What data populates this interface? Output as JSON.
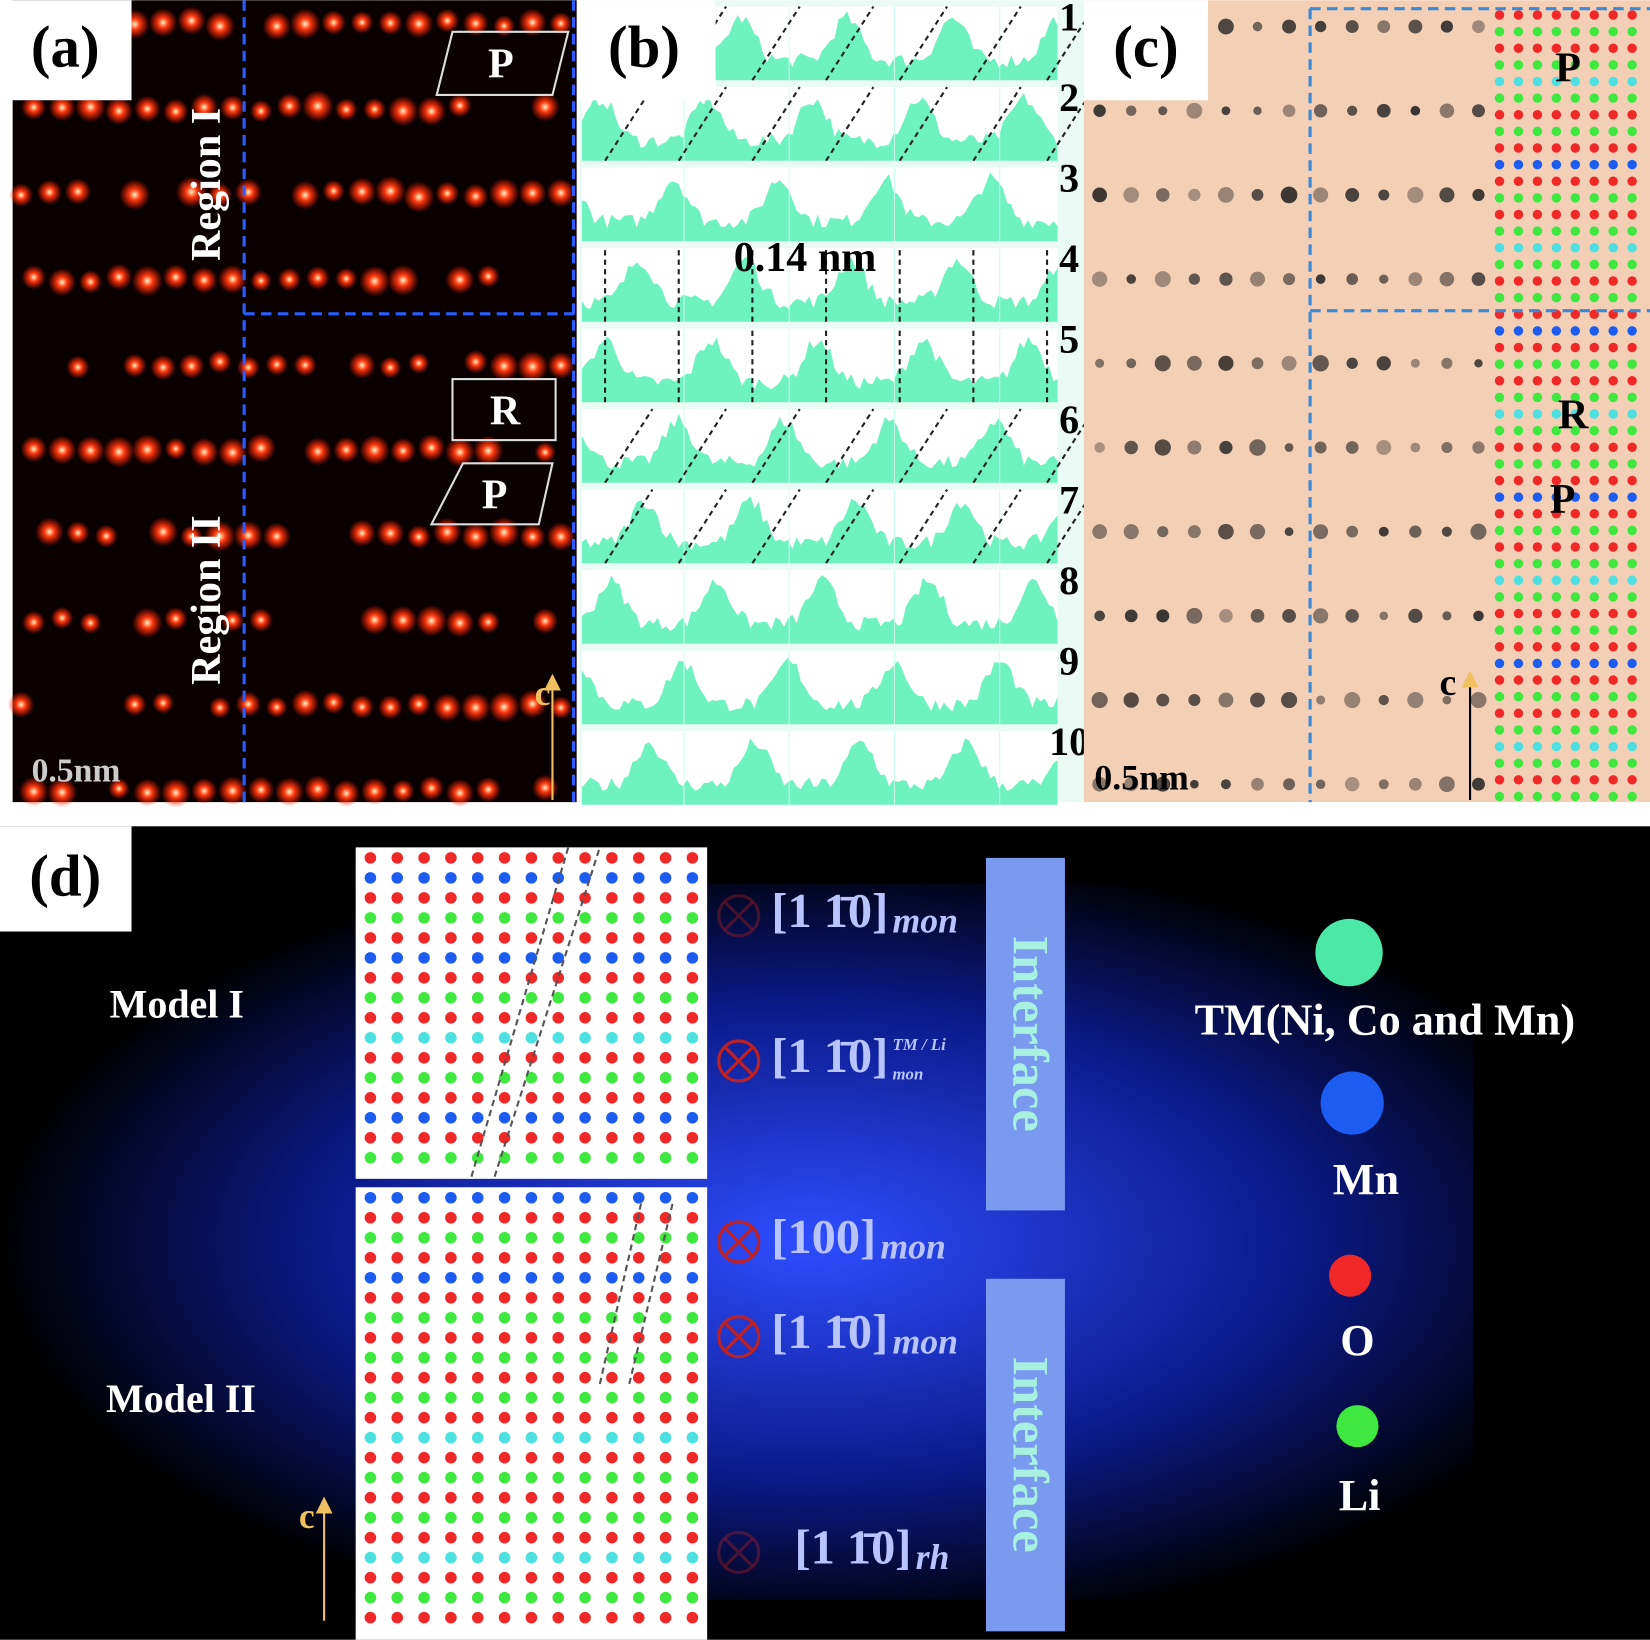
{
  "panels": {
    "a": {
      "label": "(a)",
      "regions": [
        "Region I",
        "Region II"
      ],
      "cells": [
        "P",
        "R",
        "P"
      ],
      "scale_bar": "0.5nm",
      "axis": "c"
    },
    "b": {
      "label": "(b)",
      "spacing": "0.14 nm",
      "rows": [
        1,
        2,
        3,
        4,
        5,
        6,
        7,
        8,
        9,
        10
      ]
    },
    "c": {
      "label": "(c)",
      "cells": [
        "P",
        "R",
        "P"
      ],
      "scale_bar": "0.5nm",
      "axis": "c"
    },
    "d": {
      "label": "(d)",
      "models": [
        "Model I",
        "Model II"
      ],
      "directions": [
        {
          "text": "[1 1̄0]",
          "sub": "mon"
        },
        {
          "text": "[1 1̄0]",
          "sup": "TM / Li",
          "sub": "mon"
        },
        {
          "text": "[100]",
          "sub": "mon"
        },
        {
          "text": "[1 1̄0]",
          "sub": "mon"
        },
        {
          "text": "[1 1̄0]",
          "sub": "rh"
        }
      ],
      "interface": [
        "Interface",
        "Interface"
      ],
      "legend": [
        "TM(Ni, Co and Mn)",
        "Mn",
        "O",
        "Li"
      ],
      "axis": "c"
    }
  }
}
